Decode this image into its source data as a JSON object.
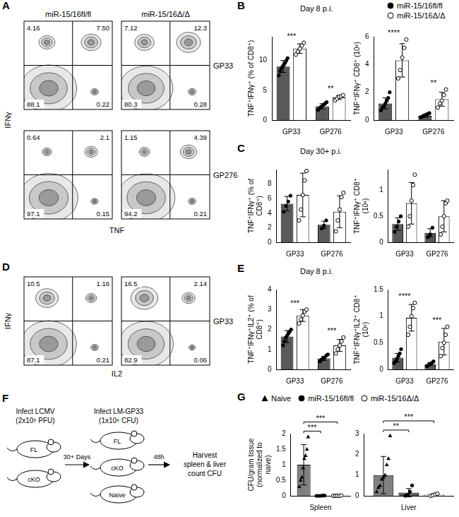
{
  "flow_panels": [
    {
      "letter": "A",
      "columns": [
        "miR-15/16fl/fl",
        "miR-15/16Δ/Δ"
      ],
      "x_label": "TNF",
      "y_label": "IFNγ",
      "rows": [
        {
          "label": "GP33",
          "plots": [
            {
              "values": [
                4.16,
                7.5,
                88.1,
                0.22
              ],
              "value_labels": [
                "4.16",
                "7.50",
                "88.1",
                "0.22"
              ]
            },
            {
              "values": [
                7.12,
                12.3,
                80.3,
                0.28
              ],
              "value_labels": [
                "7.12",
                "12.3",
                "80.3",
                "0.28"
              ]
            }
          ]
        },
        {
          "label": "GP276",
          "plots": [
            {
              "values": [
                0.64,
                2.1,
                97.1,
                0.15
              ],
              "value_labels": [
                "0.64",
                "2.1",
                "97.1",
                "0.15"
              ]
            },
            {
              "values": [
                1.15,
                4.39,
                94.2,
                0.21
              ],
              "value_labels": [
                "1.15",
                "4.39",
                "94.2",
                "0.21"
              ]
            }
          ]
        }
      ]
    },
    {
      "letter": "D",
      "x_label": "IL2",
      "y_label": "IFNγ",
      "rows": [
        {
          "label": "GP33",
          "plots": [
            {
              "values": [
                10.5,
                1.16,
                87.1,
                0.21
              ],
              "value_labels": [
                "10.5",
                "1.16",
                "87.1",
                "0.21"
              ]
            },
            {
              "values": [
                16.5,
                2.14,
                82.9,
                0.06
              ],
              "value_labels": [
                "16.5",
                "2.14",
                "82.9",
                "0.06"
              ]
            }
          ]
        }
      ]
    }
  ],
  "bar_panels": [
    {
      "letter": "B",
      "header": "Day 8 p.i."
    },
    {
      "letter": "C",
      "header": "Day 30+ p.i."
    },
    {
      "letter": "E",
      "header": "Day 8 p.i."
    },
    {
      "letter": "G"
    }
  ],
  "chart_data": [
    {
      "type": "bar",
      "panel": "B",
      "y_label": "TNF⁺IFNγ⁺ (% of CD8⁺)",
      "categories": [
        "GP33",
        "GP276"
      ],
      "ylim": [
        0,
        14
      ],
      "yticks": [
        0,
        5,
        10
      ],
      "grid": false,
      "series": [
        {
          "name": "miR-15/16fl/fl",
          "color": "#595959",
          "marker": "circle",
          "values": [
            9.0,
            2.3
          ],
          "errors": [
            1.0,
            0.45
          ],
          "points": [
            [
              7.5,
              8.2,
              8.7,
              9.0,
              9.3,
              9.6,
              10.0,
              10.4
            ],
            [
              1.7,
              2.0,
              2.2,
              2.4,
              2.6,
              2.8,
              3.0
            ]
          ]
        },
        {
          "name": "miR-15/16Δ/Δ",
          "color": "#ffffff",
          "marker": "open_circle",
          "values": [
            12.0,
            3.8
          ],
          "errors": [
            0.8,
            0.35
          ],
          "points": [
            [
              11.0,
              11.5,
              12.0,
              12.5,
              13.0
            ],
            [
              3.3,
              3.6,
              3.9,
              4.0,
              4.2
            ]
          ]
        }
      ],
      "significance": [
        {
          "category": "GP33",
          "text": "***"
        },
        {
          "category": "GP276",
          "text": "**"
        }
      ]
    },
    {
      "type": "bar",
      "panel": "B",
      "y_label": "TNF⁺IFNγ⁺ CD8⁺ (10⁶)",
      "categories": [
        "GP33",
        "GP276"
      ],
      "ylim": [
        0,
        6
      ],
      "yticks": [
        0,
        2,
        4,
        6
      ],
      "grid": false,
      "legend": "top",
      "series": [
        {
          "name": "miR-15/16fl/fl",
          "color": "#595959",
          "marker": "circle",
          "values": [
            1.2,
            0.3
          ],
          "errors": [
            0.4,
            0.1
          ],
          "points": [
            [
              0.7,
              0.9,
              1.0,
              1.2,
              1.4,
              1.6,
              2.0
            ],
            [
              0.2,
              0.25,
              0.3,
              0.35,
              0.4,
              0.45,
              0.5
            ]
          ]
        },
        {
          "name": "miR-15/16Δ/Δ",
          "color": "#ffffff",
          "marker": "open_circle",
          "values": [
            4.3,
            1.5
          ],
          "errors": [
            1.2,
            0.5
          ],
          "points": [
            [
              3.0,
              3.6,
              4.5,
              5.2,
              5.8
            ],
            [
              0.9,
              1.2,
              1.4,
              1.8,
              2.2
            ]
          ]
        }
      ],
      "significance": [
        {
          "category": "GP33",
          "text": "****"
        },
        {
          "category": "GP276",
          "text": "**"
        }
      ]
    },
    {
      "type": "bar",
      "panel": "C",
      "y_label": "TNF⁺IFNγ⁺ (% of CD8⁺)",
      "categories": [
        "GP33",
        "GP276"
      ],
      "ylim": [
        0,
        10
      ],
      "yticks": [
        0,
        2,
        4,
        6,
        8
      ],
      "grid": false,
      "series": [
        {
          "name": "miR-15/16fl/fl",
          "color": "#595959",
          "marker": "circle",
          "values": [
            5.3,
            2.4
          ],
          "errors": [
            1.0,
            0.5
          ],
          "points": [
            [
              4.2,
              5.0,
              5.6,
              6.4
            ],
            [
              1.9,
              2.3,
              3.0
            ]
          ]
        },
        {
          "name": "miR-15/16Δ/Δ",
          "color": "#ffffff",
          "marker": "open_circle",
          "values": [
            6.5,
            4.2
          ],
          "errors": [
            3.0,
            2.2
          ],
          "points": [
            [
              3.0,
              4.5,
              6.5,
              8.5,
              9.8
            ],
            [
              1.5,
              3.0,
              4.5,
              6.2,
              6.8
            ]
          ]
        }
      ]
    },
    {
      "type": "bar",
      "panel": "C",
      "y_label": "TNF⁺IFNγ⁺ CD8⁺ (10⁶)",
      "categories": [
        "GP33",
        "GP276"
      ],
      "ylim": [
        0,
        1.4
      ],
      "yticks": [
        0,
        0.5,
        1
      ],
      "grid": false,
      "series": [
        {
          "name": "miR-15/16fl/fl",
          "color": "#595959",
          "marker": "circle",
          "values": [
            0.35,
            0.18
          ],
          "errors": [
            0.12,
            0.08
          ],
          "points": [
            [
              0.2,
              0.3,
              0.4,
              0.5
            ],
            [
              0.1,
              0.15,
              0.28
            ]
          ]
        },
        {
          "name": "miR-15/16Δ/Δ",
          "color": "#ffffff",
          "marker": "open_circle",
          "values": [
            0.75,
            0.5
          ],
          "errors": [
            0.4,
            0.3
          ],
          "points": [
            [
              0.3,
              0.5,
              0.8,
              1.1,
              1.3
            ],
            [
              0.15,
              0.3,
              0.5,
              0.75,
              0.8
            ]
          ]
        }
      ]
    },
    {
      "type": "bar",
      "panel": "E",
      "y_label": "TNF⁺IFNγ⁺IL2⁺ (% of CD8⁺)",
      "categories": [
        "GP33",
        "GP276"
      ],
      "ylim": [
        0,
        4
      ],
      "yticks": [
        0,
        1,
        2,
        3,
        4
      ],
      "grid": false,
      "series": [
        {
          "name": "miR-15/16fl/fl",
          "color": "#595959",
          "marker": "circle",
          "values": [
            1.65,
            0.55
          ],
          "errors": [
            0.3,
            0.1
          ],
          "points": [
            [
              1.2,
              1.4,
              1.6,
              1.7,
              1.8,
              1.9,
              2.0
            ],
            [
              0.4,
              0.5,
              0.55,
              0.6,
              0.7,
              0.75
            ]
          ]
        },
        {
          "name": "miR-15/16Δ/Δ",
          "color": "#ffffff",
          "marker": "open_circle",
          "values": [
            2.7,
            1.2
          ],
          "errors": [
            0.3,
            0.3
          ],
          "points": [
            [
              2.3,
              2.5,
              2.7,
              2.9,
              3.0
            ],
            [
              0.8,
              1.0,
              1.2,
              1.4,
              1.6
            ]
          ]
        }
      ],
      "significance": [
        {
          "category": "GP33",
          "text": "***"
        },
        {
          "category": "GP276",
          "text": "***"
        }
      ]
    },
    {
      "type": "bar",
      "panel": "E",
      "y_label": "TNF⁺IFNγ⁺IL2⁺ CD8⁺ (10⁶)",
      "categories": [
        "GP33",
        "GP276"
      ],
      "ylim": [
        0,
        1.5
      ],
      "yticks": [
        0,
        0.5,
        1,
        1.5
      ],
      "grid": false,
      "series": [
        {
          "name": "miR-15/16fl/fl",
          "color": "#595959",
          "marker": "circle",
          "values": [
            0.22,
            0.1
          ],
          "errors": [
            0.08,
            0.03
          ],
          "points": [
            [
              0.12,
              0.15,
              0.2,
              0.25,
              0.3,
              0.38
            ],
            [
              0.06,
              0.08,
              0.1,
              0.12,
              0.15
            ]
          ]
        },
        {
          "name": "miR-15/16Δ/Δ",
          "color": "#ffffff",
          "marker": "open_circle",
          "values": [
            0.97,
            0.52
          ],
          "errors": [
            0.25,
            0.25
          ],
          "points": [
            [
              0.65,
              0.8,
              1.0,
              1.15,
              1.25
            ],
            [
              0.25,
              0.4,
              0.5,
              0.65,
              0.8
            ]
          ]
        }
      ],
      "significance": [
        {
          "category": "GP33",
          "text": "****"
        },
        {
          "category": "GP276",
          "text": "***"
        }
      ]
    },
    {
      "type": "bar",
      "panel": "G",
      "y_label": "CFU/gram tissue (normalized to naive)",
      "categories": [
        "Spleen"
      ],
      "ylim": [
        0,
        2
      ],
      "yticks": [
        0,
        0.5,
        1,
        1.5,
        2
      ],
      "grid": false,
      "legend": "top",
      "series": [
        {
          "name": "Naive",
          "color": "#808080",
          "marker": "triangle",
          "values": [
            1.0
          ],
          "errors": [
            0.65
          ],
          "points": [
            [
              0.3,
              0.5,
              0.6,
              0.9,
              1.2,
              1.3,
              1.5,
              1.9
            ]
          ]
        },
        {
          "name": "miR-15/16fl/fl",
          "color": "#595959",
          "marker": "circle",
          "values": [
            0.003
          ],
          "errors": [
            0.005
          ],
          "points": [
            [
              0,
              0,
              0,
              0.01,
              0.01
            ]
          ]
        },
        {
          "name": "miR-15/16Δ/Δ",
          "color": "#ffffff",
          "marker": "open_circle",
          "values": [
            0.002
          ],
          "errors": [
            0.004
          ],
          "points": [
            [
              0,
              0,
              0,
              0,
              0.01
            ]
          ]
        }
      ],
      "significance": [
        {
          "category": "Spleen",
          "text": "***",
          "from": "Naive",
          "to": "miR-15/16fl/fl"
        },
        {
          "category": "Spleen",
          "text": "***",
          "from": "Naive",
          "to": "miR-15/16Δ/Δ"
        }
      ]
    },
    {
      "type": "bar",
      "panel": "G",
      "categories": [
        "Liver"
      ],
      "ylim": [
        0,
        3
      ],
      "yticks": [
        0,
        1,
        2,
        3
      ],
      "grid": false,
      "series": [
        {
          "name": "Naive",
          "color": "#808080",
          "marker": "triangle",
          "values": [
            1.0
          ],
          "errors": [
            0.9
          ],
          "points": [
            [
              0.2,
              0.4,
              0.5,
              0.8,
              0.9,
              1.0,
              1.5,
              1.8,
              2.9
            ]
          ]
        },
        {
          "name": "miR-15/16fl/fl",
          "color": "#595959",
          "marker": "circle",
          "values": [
            0.15
          ],
          "errors": [
            0.2
          ],
          "points": [
            [
              0,
              0.05,
              0.2,
              0.5
            ]
          ]
        },
        {
          "name": "miR-15/16Δ/Δ",
          "color": "#ffffff",
          "marker": "open_circle",
          "values": [
            0.05
          ],
          "errors": [
            0.05
          ],
          "points": [
            [
              0,
              0.03,
              0.07,
              0.1
            ]
          ]
        }
      ],
      "significance": [
        {
          "category": "Liver",
          "text": "**",
          "from": "Naive",
          "to": "miR-15/16fl/fl"
        },
        {
          "category": "Liver",
          "text": "***",
          "from": "Naive",
          "to": "miR-15/16Δ/Δ"
        }
      ]
    }
  ],
  "diagram": {
    "letter": "F",
    "first_infection": {
      "label": "Infect LCMV",
      "dose": "(2x10⁵ PFU)",
      "mice": [
        "FL",
        "cKO"
      ]
    },
    "interval": "30+ Days",
    "second_infection": {
      "label": "Infect LM-GP33",
      "dose": "(1x10⁶ CFU)",
      "mice": [
        "FL",
        "cKO",
        "Naive"
      ]
    },
    "wait": "48h",
    "readout": [
      "Harvest",
      "spleen & liver",
      "count CFU"
    ]
  }
}
